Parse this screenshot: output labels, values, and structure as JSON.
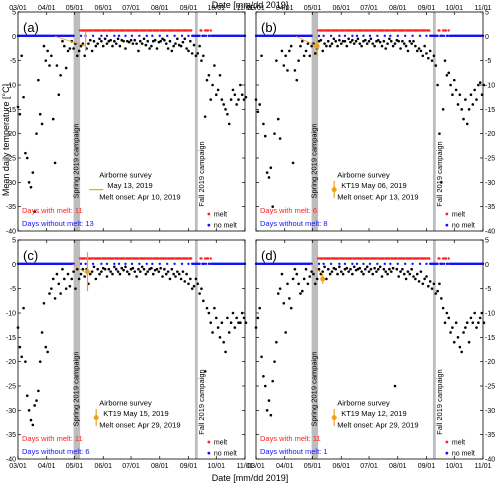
{
  "figure": {
    "top_xlabel": "Date [mm/dd 2019]",
    "bottom_xlabel": "Date [mm/dd 2019]",
    "ylabel": "Mean daily temperature [°C]"
  },
  "chart_data": [
    {
      "type": "scatter",
      "panel_label": "(a)",
      "x_ticks": [
        "03/01",
        "04/01",
        "05/01",
        "06/01",
        "07/01",
        "08/01",
        "09/01",
        "10/01",
        "11/01"
      ],
      "ylim": [
        -40,
        5
      ],
      "y_ticks": [
        -40,
        -35,
        -30,
        -25,
        -20,
        -15,
        -10,
        -5,
        0,
        5
      ],
      "spring_campaign_label": "Spring 2019 campaign",
      "fall_campaign_label": "Fall 2019 campaign",
      "airborne_survey_title": "Airborne survey",
      "survey_label": "May 13, 2019",
      "survey_marker": "line",
      "melt_onset_label": "Melt onset: Apr 10, 2019",
      "days_with_melt": "Days with melt: 11",
      "days_without_melt": "Days without melt: 13",
      "legend_melt": "melt",
      "legend_no_melt": "no melt",
      "melt_onset_day": 40,
      "survey_day": 73,
      "survey_temp": -1,
      "survey_err": 2,
      "temperature_days": [
        0,
        2,
        4,
        6,
        8,
        10,
        12,
        14,
        16,
        18,
        20,
        22,
        24,
        26,
        28,
        30,
        32,
        34,
        36,
        38,
        40,
        42,
        44,
        46,
        48,
        50,
        52,
        54,
        56,
        58,
        60,
        62,
        64,
        66,
        68,
        70,
        72,
        74,
        76,
        78,
        80,
        82,
        84,
        86,
        88,
        90,
        92,
        94,
        96,
        98,
        100,
        102,
        104,
        106,
        108,
        110,
        112,
        114,
        116,
        118,
        120,
        122,
        124,
        126,
        128,
        130,
        132,
        134,
        136,
        138,
        140,
        142,
        144,
        146,
        148,
        150,
        152,
        154,
        156,
        158,
        160,
        162,
        164,
        166,
        168,
        170,
        172,
        174,
        176,
        178,
        180,
        182,
        184,
        186,
        188,
        190,
        192,
        194,
        196,
        198,
        200,
        202,
        204,
        206,
        208,
        210,
        212,
        214,
        216,
        218,
        220,
        222,
        224,
        226,
        228,
        230,
        232,
        234,
        236,
        238,
        240,
        242,
        244,
        246
      ],
      "temperature_values": [
        -14.5,
        -16.0,
        -4.0,
        -12.5,
        -24.0,
        -25.0,
        -30.0,
        -31.0,
        -28.0,
        -36.0,
        -20.0,
        -9.0,
        -16.0,
        -18.0,
        -2.0,
        -5.0,
        -3.0,
        -6.0,
        -4.0,
        -17.0,
        -26.0,
        -6.0,
        -12.0,
        -8.0,
        -1.0,
        -2.0,
        -6.5,
        -3.0,
        -2.5,
        -1.0,
        -2.5,
        -1.5,
        -4.0,
        -3.0,
        -2.0,
        -1.5,
        -4.0,
        -2.5,
        -1.5,
        -0.8,
        -3.0,
        -1.0,
        -2.0,
        -1.5,
        -0.5,
        -1.0,
        -2.0,
        -0.5,
        -1.5,
        -1.0,
        -0.8,
        -2.0,
        -1.0,
        -1.5,
        -0.5,
        -2.0,
        -0.8,
        -1.0,
        -2.5,
        -1.0,
        -1.2,
        -0.8,
        -1.5,
        -0.8,
        -1.5,
        -3.0,
        -1.0,
        -1.5,
        -0.5,
        -1.8,
        -1.0,
        -2.5,
        -2.0,
        -1.0,
        -0.8,
        -2.5,
        -1.2,
        -1.0,
        -0.5,
        -0.8,
        -1.5,
        -2.5,
        -1.0,
        -3.0,
        -2.0,
        -1.5,
        -0.5,
        -1.8,
        -2.0,
        -1.2,
        -0.5,
        -2.5,
        -3.0,
        -1.0,
        -3.5,
        -1.8,
        -4.0,
        -3.5,
        -2.0,
        -5.0,
        -4.0,
        -16.5,
        -9.0,
        -8.0,
        -13.0,
        -10.0,
        -6.0,
        -12.0,
        -11.0,
        -8.0,
        -13.0,
        -14.0,
        -15.0,
        -16.0,
        -18.0,
        -13.0,
        -11.0,
        -12.0,
        -14.0,
        -13.0,
        -10.0,
        -12.0,
        -13.0,
        -12.5
      ]
    },
    {
      "type": "scatter",
      "panel_label": "(b)",
      "x_ticks": [
        "03/01",
        "04/01",
        "05/01",
        "06/01",
        "07/01",
        "08/01",
        "09/01",
        "10/01",
        "11/01"
      ],
      "ylim": [
        -40,
        5
      ],
      "y_ticks": [
        -40,
        -35,
        -30,
        -25,
        -20,
        -15,
        -10,
        -5,
        0,
        5
      ],
      "spring_campaign_label": "Spring 2019 campaign",
      "fall_campaign_label": "Fall 2019 campaign",
      "airborne_survey_title": "Airborne survey",
      "survey_label": "KT19 May 06, 2019",
      "survey_marker": "point",
      "melt_onset_label": "Melt onset: Apr 13, 2019",
      "days_with_melt": "Days with melt: 6",
      "days_without_melt": "Days without melt: 8",
      "legend_melt": "melt",
      "legend_no_melt": "no melt",
      "melt_onset_day": 43,
      "survey_day": 66,
      "survey_temp": -2,
      "survey_err": 2,
      "temperature_days": [
        0,
        2,
        4,
        6,
        8,
        10,
        12,
        14,
        16,
        18,
        20,
        22,
        24,
        26,
        28,
        30,
        32,
        34,
        36,
        38,
        40,
        42,
        44,
        46,
        48,
        50,
        52,
        54,
        56,
        58,
        60,
        62,
        64,
        66,
        68,
        70,
        72,
        74,
        76,
        78,
        80,
        82,
        84,
        86,
        88,
        90,
        92,
        94,
        96,
        98,
        100,
        102,
        104,
        106,
        108,
        110,
        112,
        114,
        116,
        118,
        120,
        122,
        124,
        126,
        128,
        130,
        132,
        134,
        136,
        138,
        140,
        142,
        144,
        146,
        148,
        150,
        152,
        154,
        156,
        158,
        160,
        162,
        164,
        166,
        168,
        170,
        172,
        174,
        176,
        178,
        180,
        182,
        184,
        186,
        188,
        190,
        192,
        194,
        196,
        198,
        200,
        202,
        204,
        206,
        208,
        210,
        212,
        214,
        216,
        218,
        220,
        222,
        224,
        226,
        228,
        230,
        232,
        234,
        236,
        238,
        240,
        242,
        244,
        246
      ],
      "temperature_values": [
        -13.0,
        -15.5,
        -14.0,
        -4.0,
        -18.0,
        -20.5,
        -28.0,
        -29.0,
        -27.0,
        -35.0,
        -20.0,
        -5.0,
        -17.0,
        -21.0,
        -3.0,
        -6.0,
        -4.0,
        -7.0,
        -3.0,
        -2.0,
        -26.0,
        -7.0,
        -9.0,
        -5.0,
        -2.0,
        -1.0,
        -4.0,
        -3.0,
        -1.5,
        -4.0,
        -2.0,
        -1.5,
        -3.5,
        -2.5,
        -1.0,
        -0.8,
        -3.0,
        -1.5,
        -2.0,
        -1.0,
        -2.0,
        -1.5,
        -0.5,
        -1.0,
        -2.0,
        -0.8,
        -1.5,
        -1.0,
        -1.0,
        -2.0,
        -0.5,
        -1.2,
        -0.8,
        -1.5,
        -1.0,
        -0.5,
        -1.5,
        -2.0,
        -1.0,
        -0.8,
        -1.5,
        -1.0,
        -0.5,
        -1.5,
        -2.0,
        -1.0,
        -0.8,
        -1.2,
        -2.0,
        -1.0,
        -2.5,
        -1.5,
        -0.5,
        -1.0,
        -2.0,
        -1.5,
        -0.8,
        -1.0,
        -2.5,
        -1.0,
        -1.5,
        -2.0,
        -3.0,
        -1.0,
        -1.5,
        -1.0,
        -2.0,
        -3.0,
        -2.5,
        -3.0,
        -4.0,
        -2.0,
        -3.5,
        -4.5,
        -3.0,
        -5.0,
        -4.0,
        -6.0,
        -10.0,
        -20.0,
        -30.0,
        -15.0,
        -5.0,
        -8.0,
        -7.5,
        -10.0,
        -12.0,
        -9.0,
        -11.0,
        -14.0,
        -12.0,
        -15.0,
        -17.0,
        -13.0,
        -18.0,
        -15.0,
        -12.0,
        -14.0,
        -11.0,
        -13.0,
        -10.0,
        -9.5,
        -12.0,
        -10.0
      ]
    },
    {
      "type": "scatter",
      "panel_label": "(c)",
      "x_ticks": [
        "03/01",
        "04/01",
        "05/01",
        "06/01",
        "07/01",
        "08/01",
        "09/01",
        "10/01",
        "11/01"
      ],
      "ylim": [
        -40,
        5
      ],
      "y_ticks": [
        -40,
        -35,
        -30,
        -25,
        -20,
        -15,
        -10,
        -5,
        0,
        5
      ],
      "spring_campaign_label": "Spring 2019 campaign",
      "fall_campaign_label": "Fall 2019 campaign",
      "airborne_survey_title": "Airborne survey",
      "survey_label": "KT19 May 15, 2019",
      "survey_marker": "point",
      "melt_onset_label": "Melt onset: Apr 29, 2019",
      "days_with_melt": "Days with melt: 11",
      "days_without_melt": "Days without melt: 6",
      "legend_melt": "melt",
      "legend_no_melt": "no melt",
      "melt_onset_day": 59,
      "survey_day": 75,
      "survey_temp": -1.5,
      "survey_err": 4,
      "temperature_days": [
        0,
        2,
        4,
        6,
        8,
        10,
        12,
        14,
        16,
        18,
        20,
        22,
        24,
        26,
        28,
        30,
        32,
        34,
        36,
        38,
        40,
        42,
        44,
        46,
        48,
        50,
        52,
        54,
        56,
        58,
        60,
        62,
        64,
        66,
        68,
        70,
        72,
        74,
        76,
        78,
        80,
        82,
        84,
        86,
        88,
        90,
        92,
        94,
        96,
        98,
        100,
        102,
        104,
        106,
        108,
        110,
        112,
        114,
        116,
        118,
        120,
        122,
        124,
        126,
        128,
        130,
        132,
        134,
        136,
        138,
        140,
        142,
        144,
        146,
        148,
        150,
        152,
        154,
        156,
        158,
        160,
        162,
        164,
        166,
        168,
        170,
        172,
        174,
        176,
        178,
        180,
        182,
        184,
        186,
        188,
        190,
        192,
        194,
        196,
        198,
        200,
        202,
        204,
        206,
        208,
        210,
        212,
        214,
        216,
        218,
        220,
        222,
        224,
        226,
        228,
        230,
        232,
        234,
        236,
        238,
        240,
        242,
        244,
        246
      ],
      "temperature_values": [
        -13.0,
        -17.0,
        -19.0,
        -9.0,
        -20.0,
        -27.0,
        -30.0,
        -32.0,
        -33.0,
        -29.0,
        -28.0,
        -26.0,
        -20.0,
        -14.0,
        -8.0,
        -17.0,
        -18.0,
        -6.0,
        -5.0,
        -3.0,
        -7.0,
        -2.0,
        -4.0,
        -6.0,
        -1.0,
        -3.0,
        -5.0,
        -2.0,
        -4.5,
        -3.0,
        -1.5,
        -5.0,
        -1.0,
        -3.0,
        -2.0,
        -1.0,
        -2.5,
        -1.0,
        -4.0,
        -2.0,
        -1.5,
        -0.5,
        -3.0,
        -1.0,
        -2.0,
        -1.5,
        -0.8,
        -1.0,
        -2.5,
        -1.0,
        -1.5,
        -2.0,
        -0.5,
        -1.0,
        -1.5,
        -2.0,
        -0.8,
        -1.2,
        -0.5,
        -1.5,
        -2.0,
        -1.0,
        -0.8,
        -1.5,
        -2.5,
        -1.0,
        -1.5,
        -0.5,
        -1.0,
        -2.0,
        -1.5,
        -1.0,
        -0.8,
        -2.0,
        -1.2,
        -1.0,
        -1.5,
        -0.8,
        -2.5,
        -1.0,
        -2.0,
        -1.5,
        -3.0,
        -1.0,
        -2.0,
        -2.5,
        -1.5,
        -2.0,
        -3.0,
        -1.5,
        -3.5,
        -2.0,
        -4.0,
        -3.0,
        -5.0,
        -4.5,
        -3.0,
        -4.0,
        -6.0,
        -5.0,
        -7.5,
        -22.0,
        -9.0,
        -10.0,
        -12.0,
        -14.0,
        -9.0,
        -11.0,
        -13.0,
        -15.0,
        -12.0,
        -16.0,
        -18.0,
        -11.0,
        -14.0,
        -12.0,
        -10.0,
        -13.0,
        -11.0,
        -12.0,
        -12.0,
        -10.0,
        -11.0,
        -12.0
      ]
    },
    {
      "type": "scatter",
      "panel_label": "(d)",
      "x_ticks": [
        "03/01",
        "04/01",
        "05/01",
        "06/01",
        "07/01",
        "08/01",
        "09/01",
        "10/01",
        "11/01"
      ],
      "ylim": [
        -40,
        5
      ],
      "y_ticks": [
        -40,
        -35,
        -30,
        -25,
        -20,
        -15,
        -10,
        -5,
        0,
        5
      ],
      "spring_campaign_label": "Spring 2019 campaign",
      "fall_campaign_label": "Fall 2019 campaign",
      "airborne_survey_title": "Airborne survey",
      "survey_label": "KT19 May 12, 2019",
      "survey_marker": "point",
      "melt_onset_label": "Melt onset: Apr 29, 2019",
      "days_with_melt": "Days with melt: 11",
      "days_without_melt": "Days without melt: 1",
      "legend_melt": "melt",
      "legend_no_melt": "no melt",
      "melt_onset_day": 59,
      "survey_day": 72,
      "survey_temp": -3,
      "survey_err": 1,
      "temperature_days": [
        0,
        2,
        4,
        6,
        8,
        10,
        12,
        14,
        16,
        18,
        20,
        22,
        24,
        26,
        28,
        30,
        32,
        34,
        36,
        38,
        40,
        42,
        44,
        46,
        48,
        50,
        52,
        54,
        56,
        58,
        60,
        62,
        64,
        66,
        68,
        70,
        72,
        74,
        76,
        78,
        80,
        82,
        84,
        86,
        88,
        90,
        92,
        94,
        96,
        98,
        100,
        102,
        104,
        106,
        108,
        110,
        112,
        114,
        116,
        118,
        120,
        122,
        124,
        126,
        128,
        130,
        132,
        134,
        136,
        138,
        140,
        142,
        144,
        146,
        148,
        150,
        152,
        154,
        156,
        158,
        160,
        162,
        164,
        166,
        168,
        170,
        172,
        174,
        176,
        178,
        180,
        182,
        184,
        186,
        188,
        190,
        192,
        194,
        196,
        198,
        200,
        202,
        204,
        206,
        208,
        210,
        212,
        214,
        216,
        218,
        220,
        222,
        224,
        226,
        228,
        230,
        232,
        234,
        236,
        238,
        240,
        242,
        244,
        246
      ],
      "temperature_values": [
        -13.0,
        -11.0,
        -9.0,
        -19.0,
        -23.0,
        -25.0,
        -30.0,
        -28.0,
        -31.0,
        -24.0,
        -20.0,
        -16.0,
        -6.0,
        -5.0,
        -2.0,
        -8.0,
        -14.0,
        -4.0,
        -7.0,
        -9.0,
        -3.0,
        -1.0,
        -2.0,
        -4.0,
        -6.0,
        -5.5,
        -3.0,
        -1.0,
        -4.0,
        -2.5,
        -1.5,
        -2.0,
        -4.0,
        -3.0,
        -1.0,
        -2.0,
        -1.5,
        -0.5,
        -3.0,
        -1.0,
        -2.0,
        -1.5,
        -0.8,
        -1.0,
        -2.0,
        -0.5,
        -1.5,
        -2.0,
        -1.0,
        -0.8,
        -1.5,
        -1.0,
        -2.0,
        -0.5,
        -1.2,
        -1.0,
        -0.8,
        -1.5,
        -2.0,
        -1.0,
        -0.5,
        -1.5,
        -1.0,
        -2.0,
        -0.8,
        -1.5,
        -1.0,
        -0.5,
        -2.5,
        -1.0,
        -1.5,
        -2.0,
        -1.0,
        -1.5,
        -0.8,
        -25.0,
        -1.0,
        -2.5,
        -1.5,
        -1.0,
        -2.0,
        -3.0,
        -1.5,
        -2.0,
        -1.0,
        -2.5,
        -3.0,
        -2.0,
        -3.5,
        -1.5,
        -4.0,
        -3.0,
        -2.5,
        -4.5,
        -3.5,
        -5.0,
        -4.0,
        -6.0,
        -5.5,
        -4.0,
        -7.0,
        -9.0,
        -12.0,
        -10.0,
        -11.0,
        -14.0,
        -13.0,
        -16.0,
        -12.0,
        -15.0,
        -17.0,
        -18.0,
        -14.0,
        -13.0,
        -12.0,
        -16.0,
        -11.0,
        -12.0,
        -10.0,
        -13.0,
        -12.0,
        -11.0,
        -10.0,
        -12.0
      ]
    }
  ]
}
